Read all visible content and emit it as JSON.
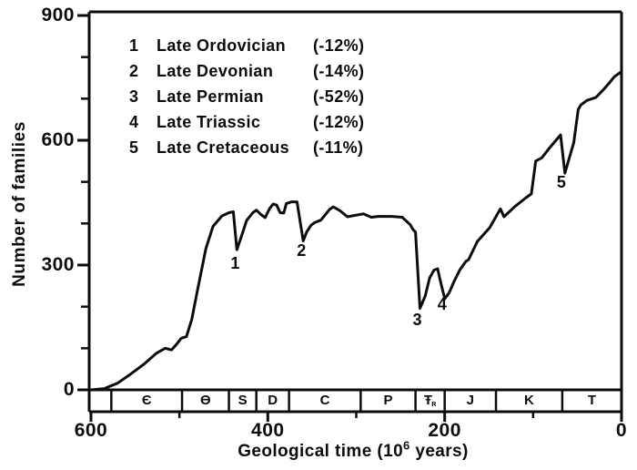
{
  "colors": {
    "ink": "#0c0c0c",
    "paper": "#ffffff"
  },
  "axes": {
    "y_title": "Number of families",
    "x_title_prefix": "Geological time (10",
    "x_title_sup": "6",
    "x_title_suffix": " years)"
  },
  "legend": {
    "items": [
      {
        "num": "1",
        "name": "Late Ordovician",
        "pct": "(-12%)"
      },
      {
        "num": "2",
        "name": "Late Devonian",
        "pct": "(-14%)"
      },
      {
        "num": "3",
        "name": "Late Permian",
        "pct": "(-52%)"
      },
      {
        "num": "4",
        "name": "Late Triassic",
        "pct": "(-12%)"
      },
      {
        "num": "5",
        "name": "Late Cretaceous",
        "pct": "(-11%)"
      }
    ]
  },
  "chart_data": {
    "type": "line",
    "xlabel": "Geological time (10^6 years)",
    "ylabel": "Number of families",
    "x_axis": {
      "min": 600,
      "max": 0,
      "reversed": true,
      "major_ticks": [
        600,
        400,
        200,
        0
      ],
      "minor_ticks": [
        500,
        300,
        100
      ]
    },
    "y_axis": {
      "min": 0,
      "max": 900,
      "major_ticks": [
        0,
        300,
        600,
        900
      ],
      "minor_ticks": [
        100,
        200,
        400,
        500,
        700,
        800
      ]
    },
    "series": [
      {
        "name": "Number of families",
        "points": [
          [
            600,
            0
          ],
          [
            585,
            3
          ],
          [
            570,
            16
          ],
          [
            555,
            38
          ],
          [
            540,
            62
          ],
          [
            526,
            88
          ],
          [
            516,
            100
          ],
          [
            509,
            96
          ],
          [
            503,
            110
          ],
          [
            498,
            124
          ],
          [
            492,
            128
          ],
          [
            486,
            170
          ],
          [
            480,
            235
          ],
          [
            470,
            340
          ],
          [
            462,
            393
          ],
          [
            452,
            418
          ],
          [
            444,
            426
          ],
          [
            439,
            428
          ],
          [
            435,
            337
          ],
          [
            430,
            368
          ],
          [
            424,
            407
          ],
          [
            417,
            426
          ],
          [
            413,
            432
          ],
          [
            408,
            422
          ],
          [
            403,
            414
          ],
          [
            398,
            436
          ],
          [
            394,
            447
          ],
          [
            390,
            444
          ],
          [
            386,
            426
          ],
          [
            382,
            425
          ],
          [
            379,
            448
          ],
          [
            373,
            452
          ],
          [
            367,
            452
          ],
          [
            360,
            358
          ],
          [
            356,
            380
          ],
          [
            351,
            396
          ],
          [
            347,
            402
          ],
          [
            340,
            408
          ],
          [
            330,
            434
          ],
          [
            326,
            440
          ],
          [
            318,
            430
          ],
          [
            310,
            416
          ],
          [
            300,
            420
          ],
          [
            292,
            423
          ],
          [
            283,
            415
          ],
          [
            275,
            417
          ],
          [
            260,
            417
          ],
          [
            248,
            415
          ],
          [
            239,
            397
          ],
          [
            236,
            386
          ],
          [
            233,
            379
          ],
          [
            228,
            196
          ],
          [
            222,
            226
          ],
          [
            217,
            269
          ],
          [
            212,
            288
          ],
          [
            208,
            291
          ],
          [
            205,
            263
          ],
          [
            200,
            219
          ],
          [
            195,
            233
          ],
          [
            190,
            258
          ],
          [
            183,
            288
          ],
          [
            176,
            309
          ],
          [
            173,
            313
          ],
          [
            168,
            335
          ],
          [
            163,
            357
          ],
          [
            149,
            390
          ],
          [
            137,
            435
          ],
          [
            133,
            416
          ],
          [
            121,
            440
          ],
          [
            108,
            462
          ],
          [
            102,
            471
          ],
          [
            97,
            550
          ],
          [
            90,
            558
          ],
          [
            82,
            580
          ],
          [
            69,
            613
          ],
          [
            64,
            521
          ],
          [
            58,
            565
          ],
          [
            54,
            594
          ],
          [
            49,
            674
          ],
          [
            46,
            685
          ],
          [
            39,
            696
          ],
          [
            29,
            703
          ],
          [
            22,
            718
          ],
          [
            13,
            740
          ],
          [
            8,
            753
          ],
          [
            0,
            765
          ]
        ]
      }
    ],
    "extinctions": [
      {
        "num": "1",
        "name": "Late Ordovician",
        "pct_change": "-12%",
        "t_ma": 437,
        "label_at": [
          437,
          305
        ]
      },
      {
        "num": "2",
        "name": "Late Devonian",
        "pct_change": "-14%",
        "t_ma": 362,
        "label_at": [
          362,
          335
        ]
      },
      {
        "num": "3",
        "name": "Late Permian",
        "pct_change": "-52%",
        "t_ma": 231,
        "label_at": [
          231,
          168
        ]
      },
      {
        "num": "4",
        "name": "Late Triassic",
        "pct_change": "-12%",
        "t_ma": 203,
        "label_at": [
          203,
          206
        ]
      },
      {
        "num": "5",
        "name": "Late Cretaceous",
        "pct_change": "-11%",
        "t_ma": 68,
        "label_at": [
          68,
          499
        ]
      }
    ],
    "geologic_periods": [
      {
        "label": "",
        "from": 600,
        "to": 577
      },
      {
        "label": "Є",
        "from": 577,
        "to": 497
      },
      {
        "label": "Ɵ",
        "from": 497,
        "to": 444
      },
      {
        "label": "S",
        "from": 444,
        "to": 413
      },
      {
        "label": "D",
        "from": 413,
        "to": 376
      },
      {
        "label": "C",
        "from": 376,
        "to": 295
      },
      {
        "label": "P",
        "from": 295,
        "to": 233
      },
      {
        "label": "Ŧ",
        "sub": "ʀ",
        "from": 233,
        "to": 200
      },
      {
        "label": "J",
        "from": 200,
        "to": 142
      },
      {
        "label": "K",
        "from": 142,
        "to": 67
      },
      {
        "label": "T",
        "from": 67,
        "to": 0
      }
    ]
  }
}
